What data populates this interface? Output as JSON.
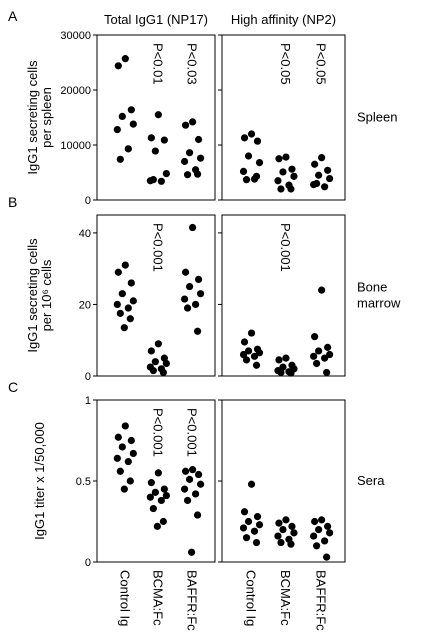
{
  "panel_labels": [
    "A",
    "B",
    "C"
  ],
  "column_titles": [
    "Total IgG1 (NP17)",
    "High affinity (NP2)"
  ],
  "row_labels": [
    [
      "Spleen"
    ],
    [
      "Bone",
      "marrow"
    ],
    [
      "Sera"
    ]
  ],
  "chart_data": [
    {
      "type": "strip",
      "ylabel": [
        "IgG1 secreting cells",
        "per spleen"
      ],
      "ylim": [
        0,
        30000
      ],
      "yticks": [
        0,
        10000,
        20000,
        30000
      ],
      "tick_labels": true,
      "color": "#000000",
      "series": [
        {
          "values": [
            25700,
            24400,
            16400,
            15200,
            13800,
            12800,
            9300,
            7400
          ]
        },
        {
          "values": [
            15500,
            11300,
            10900,
            8900,
            4800,
            3500,
            3400,
            3700
          ],
          "annotation": "P<0.01"
        },
        {
          "values": [
            14200,
            13600,
            11000,
            8600,
            7600,
            7000,
            5500,
            4600,
            4700
          ],
          "annotation": "P<0.03"
        }
      ]
    },
    {
      "type": "strip",
      "ylim": [
        0,
        30000
      ],
      "yticks": [
        0,
        10000,
        20000,
        30000
      ],
      "tick_labels": false,
      "color": "#000000",
      "series": [
        {
          "values": [
            12000,
            11300,
            10700,
            8000,
            6800,
            5200,
            3800,
            3700,
            4300
          ]
        },
        {
          "values": [
            7800,
            7500,
            5600,
            5100,
            4300,
            3500,
            2700,
            2000,
            2000
          ],
          "annotation": "P<0.05"
        },
        {
          "values": [
            7700,
            6500,
            5400,
            4500,
            3900,
            2800,
            2400,
            3000
          ],
          "annotation": "P<0.05"
        }
      ]
    },
    {
      "type": "strip",
      "ylabel": [
        "IgG1 secreting cells",
        "per 10⁶ cells"
      ],
      "ylim": [
        0,
        45
      ],
      "yticks": [
        0,
        20,
        40
      ],
      "tick_labels": true,
      "color": "#000000",
      "series": [
        {
          "values": [
            31,
            29,
            26,
            23,
            21,
            20,
            19,
            17.5,
            16,
            13.5
          ]
        },
        {
          "values": [
            9,
            7,
            5,
            4,
            3.5,
            2.5,
            2,
            1.5,
            1
          ],
          "annotation": "P<0.001"
        },
        {
          "values": [
            41.5,
            29,
            27,
            25,
            23,
            21.5,
            20,
            19,
            12.5
          ]
        }
      ]
    },
    {
      "type": "strip",
      "ylim": [
        0,
        45
      ],
      "yticks": [
        0,
        20,
        40
      ],
      "tick_labels": false,
      "color": "#000000",
      "series": [
        {
          "values": [
            12,
            9.5,
            7.5,
            7,
            6.5,
            6,
            5.5,
            4.5,
            3
          ]
        },
        {
          "values": [
            5,
            4.5,
            3,
            2.5,
            2,
            1.5,
            1.2,
            1,
            0.8
          ],
          "annotation": "P<0.001"
        },
        {
          "values": [
            24,
            11,
            8,
            7,
            6,
            5.5,
            5,
            3.5,
            1
          ]
        }
      ]
    },
    {
      "type": "strip",
      "ylabel": [
        "IgG1 titer x 1/50,000"
      ],
      "ylim": [
        0,
        1
      ],
      "yticks": [
        0,
        0.5,
        1
      ],
      "tick_labels": true,
      "color": "#000000",
      "categories": [
        "Control Ig",
        "BCMA:Fc",
        "BAFFR:Fc"
      ],
      "series": [
        {
          "values": [
            0.84,
            0.77,
            0.75,
            0.71,
            0.67,
            0.64,
            0.62,
            0.56,
            0.5,
            0.45
          ]
        },
        {
          "values": [
            0.55,
            0.49,
            0.45,
            0.43,
            0.41,
            0.4,
            0.38,
            0.33,
            0.25,
            0.22
          ],
          "annotation": "P<0.001"
        },
        {
          "values": [
            0.57,
            0.56,
            0.54,
            0.51,
            0.48,
            0.45,
            0.42,
            0.38,
            0.29,
            0.06
          ],
          "annotation": "P<0.001"
        }
      ]
    },
    {
      "type": "strip",
      "ylim": [
        0,
        1
      ],
      "yticks": [
        0,
        0.5,
        1
      ],
      "tick_labels": false,
      "color": "#000000",
      "categories": [
        "Control Ig",
        "BCMA:Fc",
        "BAFFR:Fc"
      ],
      "series": [
        {
          "values": [
            0.48,
            0.31,
            0.28,
            0.25,
            0.23,
            0.21,
            0.19,
            0.15,
            0.12
          ]
        },
        {
          "values": [
            0.26,
            0.24,
            0.22,
            0.2,
            0.18,
            0.16,
            0.14,
            0.12,
            0.11
          ]
        },
        {
          "values": [
            0.26,
            0.25,
            0.22,
            0.2,
            0.18,
            0.16,
            0.13,
            0.1,
            0.03
          ]
        }
      ]
    }
  ]
}
